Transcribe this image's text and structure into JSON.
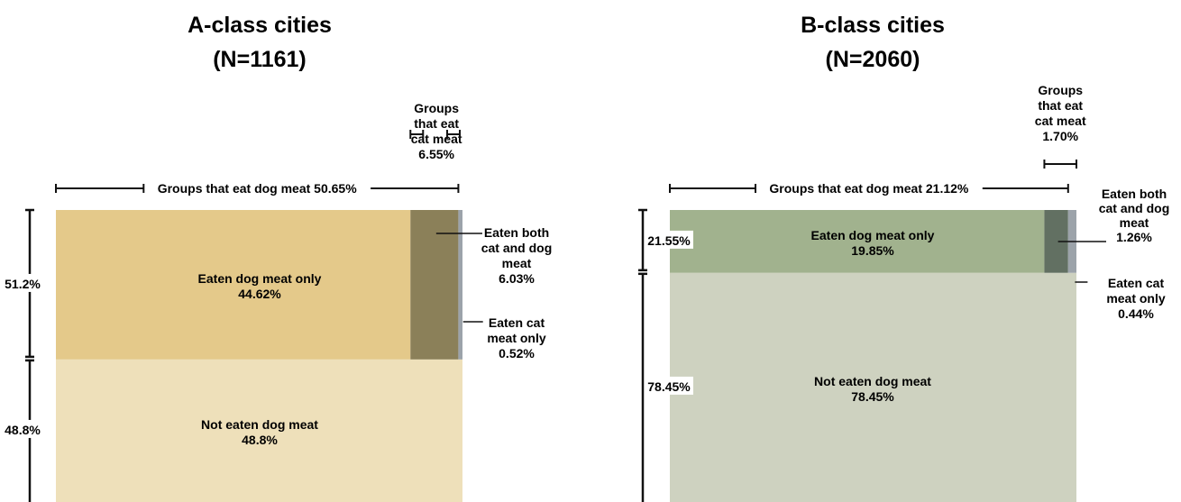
{
  "chart_data": [
    {
      "type": "mosaic",
      "title": "A-class cities",
      "subtitle": "(N=1161)",
      "colors": {
        "dog_only": "#e4c98a",
        "both": "#8b8059",
        "cat_only": "#9ca3aa",
        "not_eaten": "#eee0ba"
      },
      "rows": [
        {
          "label": "51.2%",
          "value": 51.2
        },
        {
          "label": "48.8%",
          "value": 48.8
        }
      ],
      "segments": [
        {
          "key": "dog_only",
          "label": "Eaten dog meat only",
          "value_label": "44.62%",
          "value": 44.62
        },
        {
          "key": "both",
          "label": "Eaten both cat and dog meat",
          "value_label": "6.03%",
          "value": 6.03
        },
        {
          "key": "cat_only",
          "label": "Eaten cat meat only",
          "value_label": "0.52%",
          "value": 0.52
        },
        {
          "key": "not_eaten",
          "label": "Not eaten dog meat",
          "value_label": "48.8%",
          "value": 48.8
        }
      ],
      "brackets": {
        "dog": {
          "text": "Groups that eat dog meat 50.65%",
          "value": 50.65
        },
        "cat": {
          "lines": [
            "Groups",
            "that eat",
            "cat meat",
            "6.55%"
          ],
          "value": 6.55
        }
      },
      "callouts": {
        "both": [
          "Eaten both",
          "cat and dog",
          "meat",
          "6.03%"
        ],
        "cat_only": [
          "Eaten cat",
          "meat only",
          "0.52%"
        ]
      }
    },
    {
      "type": "mosaic",
      "title": "B-class cities",
      "subtitle": "(N=2060)",
      "colors": {
        "dog_only": "#a1b28e",
        "both": "#627062",
        "cat_only": "#9ca3aa",
        "not_eaten": "#ced2c0"
      },
      "rows": [
        {
          "label": "21.55%",
          "value": 21.55
        },
        {
          "label": "78.45%",
          "value": 78.45
        }
      ],
      "segments": [
        {
          "key": "dog_only",
          "label": "Eaten dog meat only",
          "value_label": "19.85%",
          "value": 19.85
        },
        {
          "key": "both",
          "label": "Eaten both cat and dog meat",
          "value_label": "1.26%",
          "value": 1.26
        },
        {
          "key": "cat_only",
          "label": "Eaten cat meat only",
          "value_label": "0.44%",
          "value": 0.44
        },
        {
          "key": "not_eaten",
          "label": "Not eaten dog meat",
          "value_label": "78.45%",
          "value": 78.45
        }
      ],
      "brackets": {
        "dog": {
          "text": "Groups that eat dog meat 21.12%",
          "value": 21.12
        },
        "cat": {
          "lines": [
            "Groups",
            "that eat",
            "cat meat",
            "1.70%"
          ],
          "value": 1.7
        }
      },
      "callouts": {
        "both": [
          "Eaten both",
          "cat and dog",
          "meat",
          "1.26%"
        ],
        "cat_only": [
          "Eaten cat",
          "meat only",
          "0.44%"
        ]
      }
    }
  ]
}
